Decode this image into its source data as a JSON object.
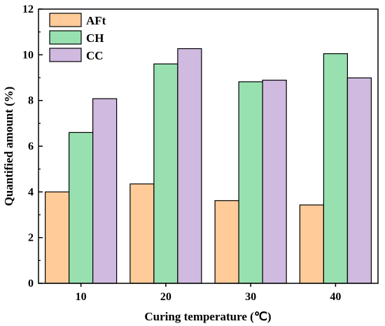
{
  "chart_data": {
    "type": "bar",
    "xlabel": "Curing temperature (℃)",
    "ylabel": "Quantified amount (%)",
    "categories": [
      "10",
      "20",
      "30",
      "40"
    ],
    "ylim": [
      0,
      12
    ],
    "yticks": [
      "0",
      "2",
      "4",
      "6",
      "8",
      "10",
      "12"
    ],
    "series": [
      {
        "name": "AFt",
        "color": "#FFCB99",
        "values": [
          4.0,
          4.35,
          3.62,
          3.43
        ]
      },
      {
        "name": "CH",
        "color": "#99E0B1",
        "values": [
          6.6,
          9.6,
          8.82,
          10.05
        ]
      },
      {
        "name": "CC",
        "color": "#D0BAE0",
        "values": [
          8.08,
          10.27,
          8.89,
          8.99
        ]
      }
    ],
    "legend": "top-left",
    "grid": false
  }
}
